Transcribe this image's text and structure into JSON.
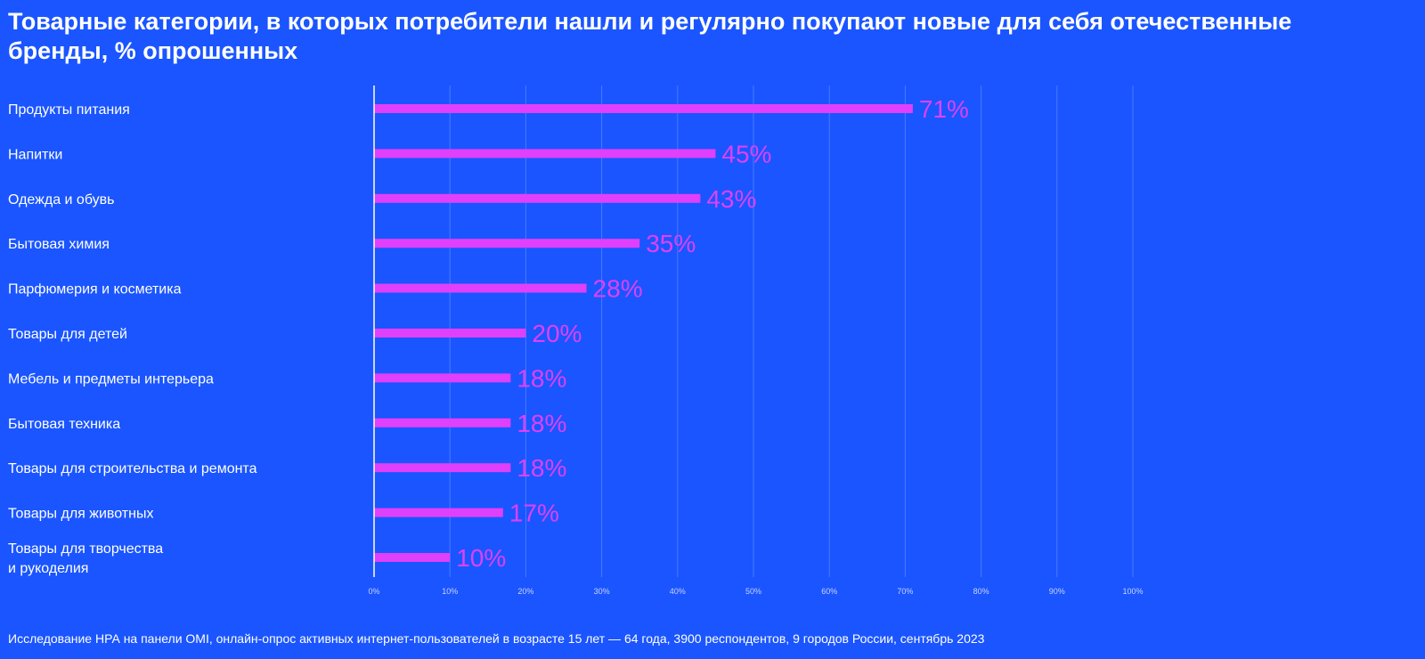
{
  "colors": {
    "background": "#1a55ff",
    "bar": "#e040fb",
    "value_label": "#e040fb",
    "grid": "#4a7bff",
    "axis": "#ffffff"
  },
  "header": {
    "title": "Товарные категории, в которых потребители нашли и регулярно покупают новые для себя отечественные бренды, % опрошенных"
  },
  "footer": {
    "note": "Исследование НРА на панели OMI, онлайн-опрос активных интернет-пользователей в возрасте 15 лет — 64 года, 3900 респондентов, 9 городов России, сентябрь 2023"
  },
  "chart_data": {
    "type": "bar",
    "orientation": "horizontal",
    "title": "Товарные категории, в которых потребители нашли и регулярно покупают новые для себя отечественные бренды, % опрошенных",
    "categories": [
      [
        "Продукты питания"
      ],
      [
        "Напитки"
      ],
      [
        "Одежда и обувь"
      ],
      [
        "Бытовая химия"
      ],
      [
        "Парфюмерия и косметика"
      ],
      [
        "Товары для детей"
      ],
      [
        "Мебель и предметы интерьера"
      ],
      [
        "Бытовая техника"
      ],
      [
        "Товары для строительства и ремонта"
      ],
      [
        "Товары для животных"
      ],
      [
        "Товары для творчества",
        "и рукоделия"
      ]
    ],
    "values": [
      71,
      45,
      43,
      35,
      28,
      20,
      18,
      18,
      18,
      17,
      10
    ],
    "value_labels": [
      "71%",
      "45%",
      "43%",
      "35%",
      "28%",
      "20%",
      "18%",
      "18%",
      "18%",
      "17%",
      "10%"
    ],
    "xlim": [
      0,
      100
    ],
    "x_ticks": [
      "0%",
      "10%",
      "20%",
      "30%",
      "40%",
      "50%",
      "60%",
      "70%",
      "80%",
      "90%",
      "100%"
    ],
    "grid": true,
    "legend": "none"
  }
}
